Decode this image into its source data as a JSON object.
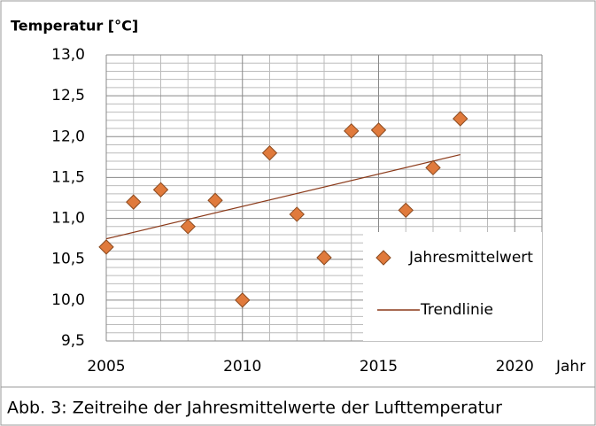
{
  "chart_data": {
    "type": "scatter",
    "y_label": "Temperatur [°C]",
    "x_label": "Jahr",
    "caption": "Abb. 3: Zeitreihe der Jahresmittelwerte der Lufttemperatur",
    "series": [
      {
        "name": "Jahresmittelwert",
        "color": "#e07a3c",
        "x": [
          2005,
          2006,
          2007,
          2008,
          2009,
          2010,
          2011,
          2012,
          2013,
          2014,
          2015,
          2016,
          2017,
          2018
        ],
        "values": [
          10.65,
          11.2,
          11.35,
          10.9,
          11.22,
          10.0,
          11.8,
          11.05,
          10.52,
          12.07,
          12.08,
          11.1,
          11.62,
          12.22
        ]
      },
      {
        "name": "Trendlinie",
        "color": "#8b3a1a",
        "x": [
          2005,
          2018
        ],
        "values": [
          10.75,
          11.78
        ]
      }
    ],
    "xlim": [
      2005,
      2021
    ],
    "xticks": [
      2005,
      2010,
      2015,
      2020
    ],
    "ylim": [
      9.5,
      13
    ],
    "yticks": [
      {
        "value": 9.5,
        "label": "9,5"
      },
      {
        "value": 10,
        "label": "10,0"
      },
      {
        "value": 10.5,
        "label": "10,5"
      },
      {
        "value": 11,
        "label": "11,0"
      },
      {
        "value": 11.5,
        "label": "11,5"
      },
      {
        "value": 12,
        "label": "12,0"
      },
      {
        "value": 12.5,
        "label": "12,5"
      },
      {
        "value": 13,
        "label": "13,0"
      }
    ],
    "grid": true,
    "minor_grid": true,
    "legend": "lower right"
  }
}
